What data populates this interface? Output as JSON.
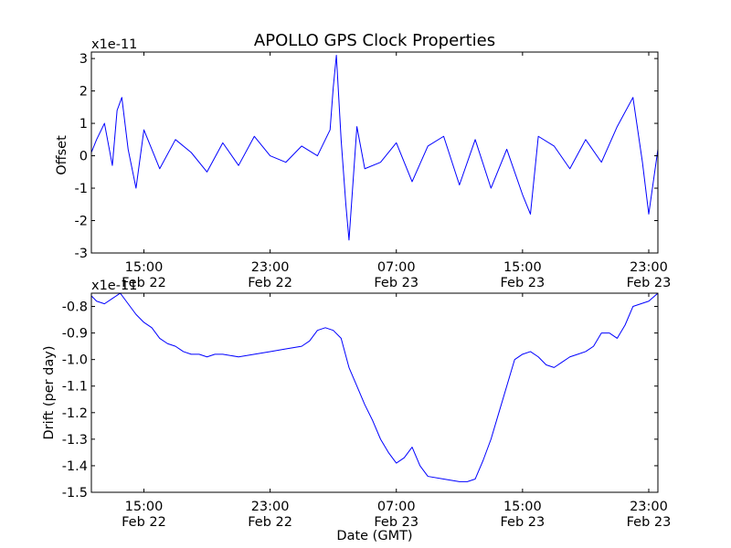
{
  "chart_data": [
    {
      "type": "line",
      "title": "APOLLO GPS Clock Properties",
      "ylabel": "Offset",
      "xlabel": "",
      "y_offset_text": "x1e-11",
      "ylim": [
        -3,
        3.2
      ],
      "yticks": [
        "-3",
        "-2",
        "-1",
        "0",
        "1",
        "2",
        "3"
      ],
      "ytick_values": [
        -3,
        -2,
        -1,
        0,
        1,
        2,
        3
      ],
      "xlim": [
        "Feb 22 11:40",
        "Feb 23 23:35"
      ],
      "xticks": [
        {
          "time": "15:00",
          "date": "Feb 22"
        },
        {
          "time": "23:00",
          "date": "Feb 22"
        },
        {
          "time": "07:00",
          "date": "Feb 23"
        },
        {
          "time": "15:00",
          "date": "Feb 23"
        },
        {
          "time": "23:00",
          "date": "Feb 23"
        }
      ],
      "xtick_hours": [
        15,
        23,
        31,
        39,
        47
      ],
      "x_hour_range": [
        11.67,
        47.58
      ],
      "grid": false,
      "series": [
        {
          "color": "#0000ff",
          "x_hours": [
            11.67,
            12.0,
            12.5,
            13.0,
            13.3,
            13.6,
            14.0,
            14.5,
            15.0,
            15.5,
            16.0,
            17.0,
            18.0,
            19.0,
            20.0,
            21.0,
            22.0,
            23.0,
            24.0,
            25.0,
            26.0,
            26.8,
            27.0,
            27.2,
            27.5,
            27.8,
            28.0,
            28.5,
            29.0,
            30.0,
            31.0,
            32.0,
            33.0,
            34.0,
            35.0,
            36.0,
            37.0,
            38.0,
            39.0,
            39.5,
            40.0,
            41.0,
            42.0,
            43.0,
            44.0,
            45.0,
            46.0,
            46.6,
            47.0,
            47.58
          ],
          "values": [
            0.1,
            0.5,
            1.0,
            -0.3,
            1.4,
            1.8,
            0.2,
            -1.0,
            0.8,
            0.2,
            -0.4,
            0.5,
            0.1,
            -0.5,
            0.4,
            -0.3,
            0.6,
            0.0,
            -0.2,
            0.3,
            0.0,
            0.8,
            2.1,
            3.1,
            0.5,
            -1.5,
            -2.6,
            0.9,
            -0.4,
            -0.2,
            0.4,
            -0.8,
            0.3,
            0.6,
            -0.9,
            0.5,
            -1.0,
            0.2,
            -1.2,
            -1.8,
            0.6,
            0.3,
            -0.4,
            0.5,
            -0.2,
            0.9,
            1.8,
            -0.2,
            -1.8,
            0.2
          ]
        }
      ]
    },
    {
      "type": "line",
      "title": "",
      "ylabel": "Drift (per day)",
      "xlabel": "Date (GMT)",
      "y_offset_text": "x1e-11",
      "ylim": [
        -1.5,
        -0.75
      ],
      "yticks": [
        "-1.5",
        "-1.4",
        "-1.3",
        "-1.2",
        "-1.1",
        "-1.0",
        "-0.9",
        "-0.8"
      ],
      "ytick_values": [
        -1.5,
        -1.4,
        -1.3,
        -1.2,
        -1.1,
        -1.0,
        -0.9,
        -0.8
      ],
      "xlim": [
        "Feb 22 11:40",
        "Feb 23 23:35"
      ],
      "xticks": [
        {
          "time": "15:00",
          "date": "Feb 22"
        },
        {
          "time": "23:00",
          "date": "Feb 22"
        },
        {
          "time": "07:00",
          "date": "Feb 23"
        },
        {
          "time": "15:00",
          "date": "Feb 23"
        },
        {
          "time": "23:00",
          "date": "Feb 23"
        }
      ],
      "xtick_hours": [
        15,
        23,
        31,
        39,
        47
      ],
      "x_hour_range": [
        11.67,
        47.58
      ],
      "grid": false,
      "series": [
        {
          "color": "#0000ff",
          "x_hours": [
            11.67,
            12.0,
            12.5,
            13.0,
            13.5,
            14.0,
            14.5,
            15.0,
            15.5,
            16.0,
            16.5,
            17.0,
            17.5,
            18.0,
            18.5,
            19.0,
            19.5,
            20.0,
            21.0,
            22.0,
            23.0,
            24.0,
            25.0,
            25.5,
            26.0,
            26.5,
            27.0,
            27.5,
            28.0,
            28.5,
            29.0,
            29.5,
            30.0,
            30.5,
            31.0,
            31.5,
            32.0,
            32.5,
            33.0,
            34.0,
            35.0,
            35.5,
            36.0,
            36.5,
            37.0,
            37.5,
            38.0,
            38.5,
            39.0,
            39.5,
            40.0,
            40.5,
            41.0,
            41.5,
            42.0,
            42.5,
            43.0,
            43.5,
            44.0,
            44.5,
            45.0,
            45.5,
            46.0,
            46.5,
            47.0,
            47.58
          ],
          "values": [
            -0.76,
            -0.78,
            -0.79,
            -0.77,
            -0.75,
            -0.79,
            -0.83,
            -0.86,
            -0.88,
            -0.92,
            -0.94,
            -0.95,
            -0.97,
            -0.98,
            -0.98,
            -0.99,
            -0.98,
            -0.98,
            -0.99,
            -0.98,
            -0.97,
            -0.96,
            -0.95,
            -0.93,
            -0.89,
            -0.88,
            -0.89,
            -0.92,
            -1.03,
            -1.1,
            -1.17,
            -1.23,
            -1.3,
            -1.35,
            -1.39,
            -1.37,
            -1.33,
            -1.4,
            -1.44,
            -1.45,
            -1.46,
            -1.46,
            -1.45,
            -1.38,
            -1.3,
            -1.2,
            -1.1,
            -1.0,
            -0.98,
            -0.97,
            -0.99,
            -1.02,
            -1.03,
            -1.01,
            -0.99,
            -0.98,
            -0.97,
            -0.95,
            -0.9,
            -0.9,
            -0.92,
            -0.87,
            -0.8,
            -0.79,
            -0.78,
            -0.75
          ]
        }
      ]
    }
  ]
}
